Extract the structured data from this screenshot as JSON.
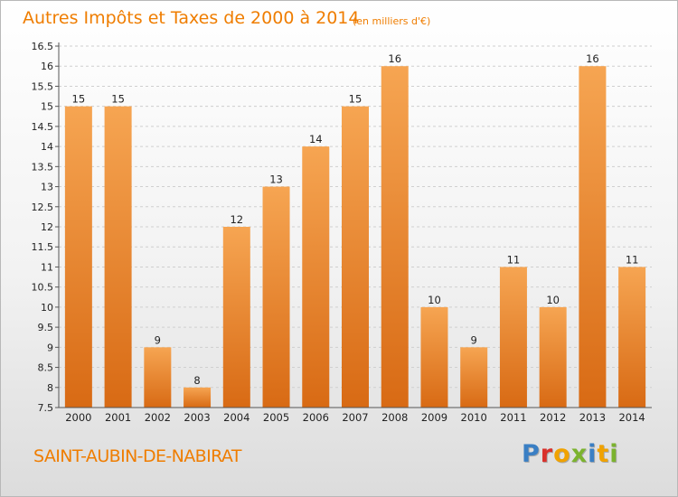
{
  "chart_data": {
    "type": "bar",
    "title": "Autres Impôts et Taxes de 2000 à 2014",
    "subtitle": "(en milliers d'€)",
    "categories": [
      "2000",
      "2001",
      "2002",
      "2003",
      "2004",
      "2005",
      "2006",
      "2007",
      "2008",
      "2009",
      "2010",
      "2011",
      "2012",
      "2013",
      "2014"
    ],
    "values": [
      15,
      15,
      9,
      8,
      12,
      13,
      14,
      15,
      16,
      10,
      9,
      11,
      10,
      16,
      11
    ],
    "ylim": [
      7.5,
      16.5
    ],
    "yticks": [
      "7.5",
      "8",
      "8.5",
      "9",
      "9.5",
      "10",
      "10.5",
      "11",
      "11.5",
      "12",
      "12.5",
      "13",
      "13.5",
      "14",
      "14.5",
      "15",
      "15.5",
      "16",
      "16.5"
    ],
    "grid": true,
    "bar_color": "#ef8a2a"
  },
  "commune": "SAINT-AUBIN-DE-NABIRAT",
  "logo": {
    "letters": [
      "P",
      "r",
      "o",
      "x",
      "i",
      "t",
      "i"
    ],
    "colors": [
      "#3a7fc4",
      "#d9312b",
      "#f0a200",
      "#7bb32e",
      "#3a7fc4",
      "#f0a200",
      "#7bb32e"
    ]
  }
}
